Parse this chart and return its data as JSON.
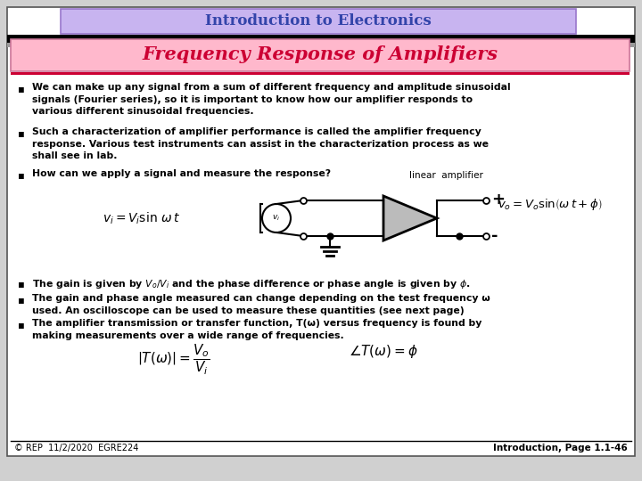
{
  "title": "Introduction to Electronics",
  "subtitle": "Frequency Response of Amplifiers",
  "title_bg": "#c8b4f0",
  "subtitle_bg": "#ffb8cc",
  "slide_bg": "#d0d0d0",
  "main_bg": "#ffffff",
  "title_color": "#3344aa",
  "subtitle_color": "#cc0033",
  "footer_left": "© REP  11/2/2020  EGRE224",
  "footer_right": "Introduction, Page 1.1-46",
  "bullet_fontsize": 7.8,
  "title_fontsize": 12,
  "subtitle_fontsize": 15
}
